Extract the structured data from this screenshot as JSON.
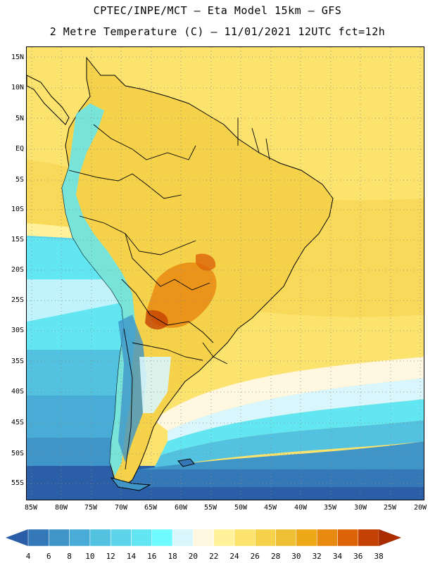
{
  "header": {
    "line1": "CPTEC/INPE/MCT –  Eta Model 15km – GFS",
    "line2": "2 Metre Temperature (C) – 11/01/2021 12UTC fct=12h"
  },
  "map": {
    "lat_labels": [
      "15N",
      "10N",
      "5N",
      "EQ",
      "5S",
      "10S",
      "15S",
      "20S",
      "25S",
      "30S",
      "35S",
      "40S",
      "45S",
      "50S",
      "55S"
    ],
    "lon_labels": [
      "85W",
      "80W",
      "75W",
      "70W",
      "65W",
      "60W",
      "55W",
      "50W",
      "45W",
      "40W",
      "35W",
      "30W",
      "25W",
      "20W"
    ],
    "border_color": "#000000",
    "grid_color": "#888888"
  },
  "colorbar": {
    "values": [
      "4",
      "6",
      "8",
      "10",
      "12",
      "14",
      "16",
      "18",
      "20",
      "22",
      "24",
      "26",
      "28",
      "30",
      "32",
      "34",
      "36",
      "38"
    ],
    "colors": [
      "#2a5fa8",
      "#3478b8",
      "#3f95c8",
      "#48acd6",
      "#52c2e0",
      "#5ed4ea",
      "#62e6f2",
      "#6ffaff",
      "#d8f6fc",
      "#fff7e0",
      "#fff29a",
      "#fbe36e",
      "#f5d24a",
      "#efbf35",
      "#eda818",
      "#e88910",
      "#dc6406",
      "#c34102",
      "#a92d01"
    ],
    "unit": "C"
  }
}
